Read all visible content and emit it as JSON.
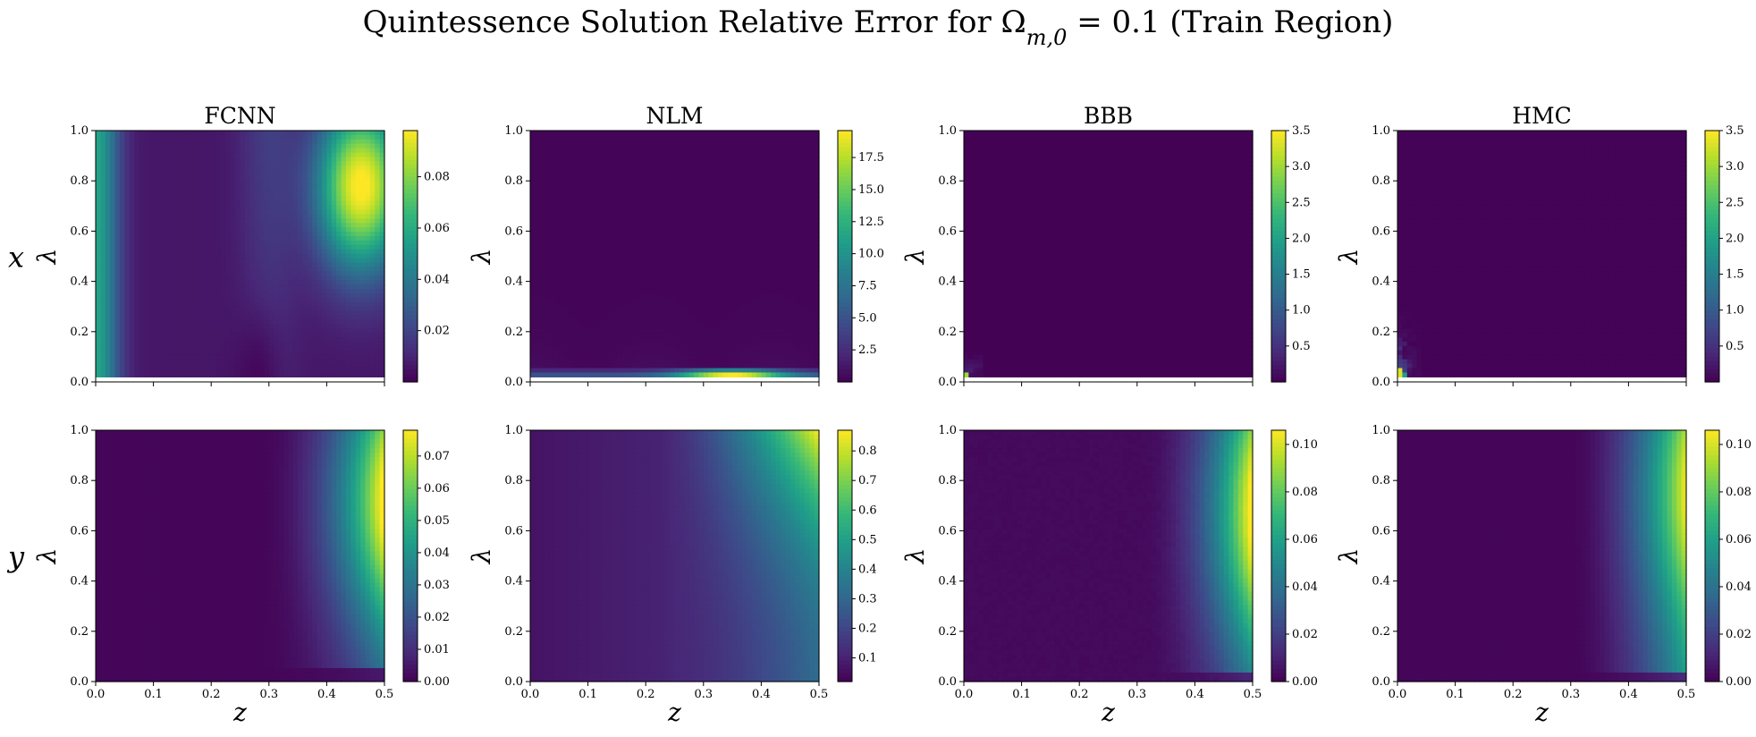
{
  "title": "Quintessence Solution Relative Error for Ω_{m,0} = 0.1 (Train Region)",
  "row_labels": [
    "x",
    "y"
  ],
  "column_titles": [
    "FCNN",
    "NLM",
    "BBB",
    "HMC"
  ],
  "colormap": [
    "#440154",
    "#482878",
    "#3e4989",
    "#31688e",
    "#26828e",
    "#1f9e89",
    "#35b779",
    "#6ece58",
    "#b5de2b",
    "#fde725"
  ],
  "chart_data": [
    {
      "type": "heatmap",
      "row": "x",
      "title": "FCNN",
      "xlabel": "z",
      "ylabel": "λ",
      "xlim": [
        0,
        0.5
      ],
      "ylim": [
        0,
        1
      ],
      "xticks": [
        0.0,
        0.1,
        0.2,
        0.3,
        0.4,
        0.5
      ],
      "yticks": [
        0.0,
        0.2,
        0.4,
        0.6,
        0.8,
        1.0
      ],
      "data_ylim": [
        0.02,
        1.0
      ],
      "show_xticklabels": false,
      "show_xlabel": false,
      "colorbar_range": [
        0.0,
        0.098
      ],
      "colorbar_ticks": [
        "0.02",
        "0.04",
        "0.06",
        "0.08"
      ],
      "pattern": "fcnn_x"
    },
    {
      "type": "heatmap",
      "row": "x",
      "title": "NLM",
      "xlabel": "z",
      "ylabel": "λ",
      "xlim": [
        0,
        0.5
      ],
      "ylim": [
        0,
        1
      ],
      "xticks": [
        0.0,
        0.1,
        0.2,
        0.3,
        0.4,
        0.5
      ],
      "yticks": [
        0.0,
        0.2,
        0.4,
        0.6,
        0.8,
        1.0
      ],
      "data_ylim": [
        0.02,
        1.0
      ],
      "show_xticklabels": false,
      "show_xlabel": false,
      "colorbar_range": [
        0.0,
        19.6
      ],
      "colorbar_ticks": [
        "2.5",
        "5.0",
        "7.5",
        "10.0",
        "12.5",
        "15.0",
        "17.5"
      ],
      "pattern": "nlm_x"
    },
    {
      "type": "heatmap",
      "row": "x",
      "title": "BBB",
      "xlabel": "z",
      "ylabel": "λ",
      "xlim": [
        0,
        0.5
      ],
      "ylim": [
        0,
        1
      ],
      "xticks": [
        0.0,
        0.1,
        0.2,
        0.3,
        0.4,
        0.5
      ],
      "yticks": [
        0.0,
        0.2,
        0.4,
        0.6,
        0.8,
        1.0
      ],
      "data_ylim": [
        0.02,
        1.0
      ],
      "show_xticklabels": false,
      "show_xlabel": false,
      "colorbar_range": [
        0.0,
        3.5
      ],
      "colorbar_ticks": [
        "0.5",
        "1.0",
        "1.5",
        "2.0",
        "2.5",
        "3.0",
        "3.5"
      ],
      "pattern": "bbb_x"
    },
    {
      "type": "heatmap",
      "row": "x",
      "title": "HMC",
      "xlabel": "z",
      "ylabel": "λ",
      "xlim": [
        0,
        0.5
      ],
      "ylim": [
        0,
        1
      ],
      "xticks": [
        0.0,
        0.1,
        0.2,
        0.3,
        0.4,
        0.5
      ],
      "yticks": [
        0.0,
        0.2,
        0.4,
        0.6,
        0.8,
        1.0
      ],
      "data_ylim": [
        0.02,
        1.0
      ],
      "show_xticklabels": false,
      "show_xlabel": false,
      "colorbar_range": [
        0.0,
        3.5
      ],
      "colorbar_ticks": [
        "0.5",
        "1.0",
        "1.5",
        "2.0",
        "2.5",
        "3.0",
        "3.5"
      ],
      "pattern": "hmc_x"
    },
    {
      "type": "heatmap",
      "row": "y",
      "title": "",
      "xlabel": "z",
      "ylabel": "λ",
      "xlim": [
        0,
        0.5
      ],
      "ylim": [
        0,
        1
      ],
      "xticks": [
        0.0,
        0.1,
        0.2,
        0.3,
        0.4,
        0.5
      ],
      "yticks": [
        0.0,
        0.2,
        0.4,
        0.6,
        0.8,
        1.0
      ],
      "data_ylim": [
        0.0,
        1.0
      ],
      "show_xticklabels": true,
      "show_xlabel": true,
      "colorbar_range": [
        0.0,
        0.078
      ],
      "colorbar_ticks": [
        "0.00",
        "0.01",
        "0.02",
        "0.03",
        "0.04",
        "0.05",
        "0.06",
        "0.07"
      ],
      "pattern": "fcnn_y"
    },
    {
      "type": "heatmap",
      "row": "y",
      "title": "",
      "xlabel": "z",
      "ylabel": "λ",
      "xlim": [
        0,
        0.5
      ],
      "ylim": [
        0,
        1
      ],
      "xticks": [
        0.0,
        0.1,
        0.2,
        0.3,
        0.4,
        0.5
      ],
      "yticks": [
        0.0,
        0.2,
        0.4,
        0.6,
        0.8,
        1.0
      ],
      "data_ylim": [
        0.0,
        1.0
      ],
      "show_xticklabels": true,
      "show_xlabel": true,
      "colorbar_range": [
        0.02,
        0.87
      ],
      "colorbar_ticks": [
        "0.1",
        "0.2",
        "0.3",
        "0.4",
        "0.5",
        "0.6",
        "0.7",
        "0.8"
      ],
      "pattern": "nlm_y"
    },
    {
      "type": "heatmap",
      "row": "y",
      "title": "",
      "xlabel": "z",
      "ylabel": "λ",
      "xlim": [
        0,
        0.5
      ],
      "ylim": [
        0,
        1
      ],
      "xticks": [
        0.0,
        0.1,
        0.2,
        0.3,
        0.4,
        0.5
      ],
      "yticks": [
        0.0,
        0.2,
        0.4,
        0.6,
        0.8,
        1.0
      ],
      "data_ylim": [
        0.0,
        1.0
      ],
      "show_xticklabels": true,
      "show_xlabel": true,
      "colorbar_range": [
        0.0,
        0.106
      ],
      "colorbar_ticks": [
        "0.00",
        "0.02",
        "0.04",
        "0.06",
        "0.08",
        "0.10"
      ],
      "pattern": "bbb_y"
    },
    {
      "type": "heatmap",
      "row": "y",
      "title": "",
      "xlabel": "z",
      "ylabel": "λ",
      "xlim": [
        0,
        0.5
      ],
      "ylim": [
        0,
        1
      ],
      "xticks": [
        0.0,
        0.1,
        0.2,
        0.3,
        0.4,
        0.5
      ],
      "yticks": [
        0.0,
        0.2,
        0.4,
        0.6,
        0.8,
        1.0
      ],
      "data_ylim": [
        0.0,
        1.0
      ],
      "show_xticklabels": true,
      "show_xlabel": true,
      "colorbar_range": [
        0.0,
        0.106
      ],
      "colorbar_ticks": [
        "0.00",
        "0.02",
        "0.04",
        "0.06",
        "0.08",
        "0.10"
      ],
      "pattern": "hmc_y"
    }
  ]
}
